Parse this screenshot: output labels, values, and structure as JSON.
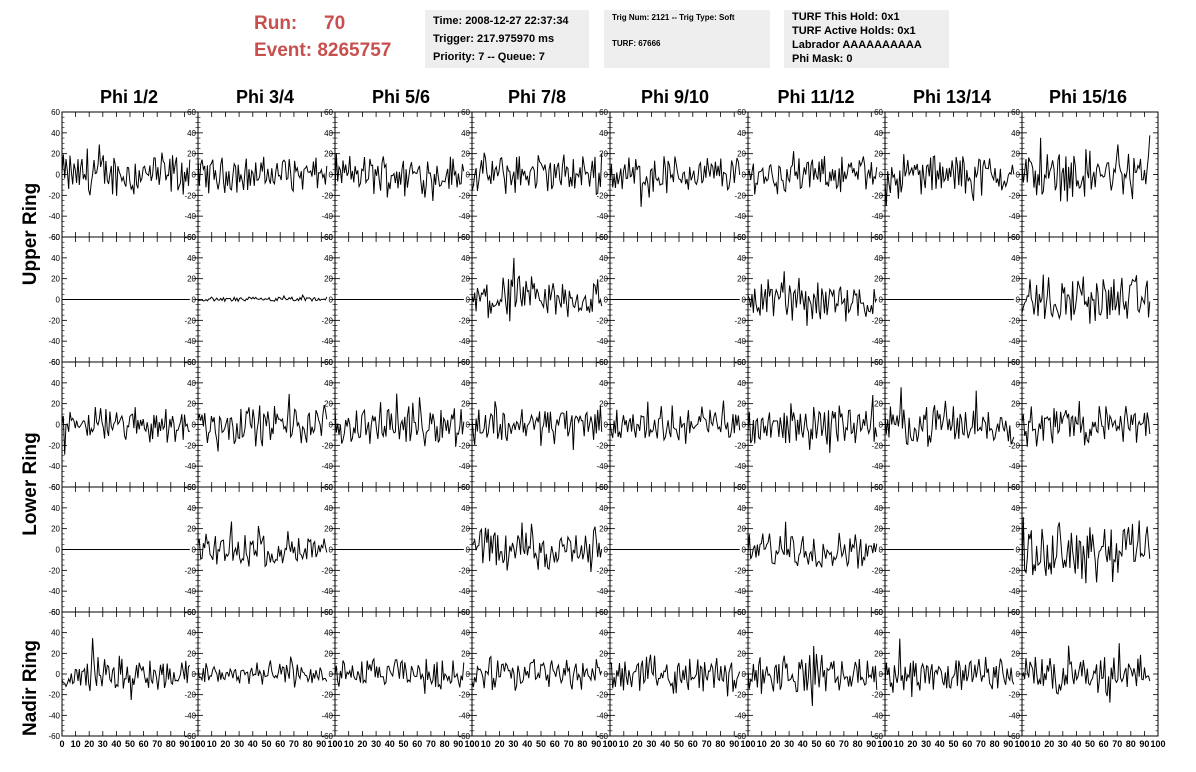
{
  "run": {
    "run_label": "Run:",
    "run_value": "70",
    "event_label": "Event:",
    "event_value": "8265757"
  },
  "info_time": {
    "time": "Time: 2008-12-27 22:37:34",
    "trigger": "Trigger: 217.975970 ms",
    "priority": "Priority: 7 -- Queue: 7"
  },
  "info_trig": {
    "trig": "Trig Num: 2121 -- Trig Type: Soft",
    "turf": "TURF: 67666"
  },
  "info_turf": {
    "hold": "TURF This Hold: 0x1",
    "active": "TURF Active Holds: 0x1",
    "labrador": "Labrador AAAAAAAAAA",
    "phimask": "Phi Mask: 0"
  },
  "colors": {
    "trace": "#000000",
    "header_red": "#c94f4f",
    "box_bg": "#eeeeee"
  },
  "chart_data": {
    "type": "line",
    "columns": [
      "Phi 1/2",
      "Phi 3/4",
      "Phi 5/6",
      "Phi 7/8",
      "Phi 9/10",
      "Phi 11/12",
      "Phi 13/14",
      "Phi 15/16"
    ],
    "ring_labels": [
      "Upper Ring",
      "Lower Ring",
      "Nadir Ring"
    ],
    "xlim": [
      0,
      100
    ],
    "ylim": [
      -60,
      60
    ],
    "x_ticks": [
      0,
      10,
      20,
      30,
      40,
      50,
      60,
      70,
      80,
      90,
      100
    ],
    "y_ticks": [
      -60,
      -40,
      -20,
      0,
      20,
      40,
      60
    ],
    "samples_per_trace": 96,
    "row_amplitudes": [
      [
        18,
        14,
        16,
        16,
        16,
        14,
        16,
        20
      ],
      [
        0,
        2,
        0,
        18,
        0,
        18,
        0,
        20
      ],
      [
        14,
        16,
        16,
        16,
        14,
        16,
        16,
        16
      ],
      [
        0,
        14,
        0,
        18,
        0,
        14,
        0,
        24
      ],
      [
        14,
        10,
        12,
        14,
        14,
        16,
        14,
        16
      ]
    ]
  }
}
